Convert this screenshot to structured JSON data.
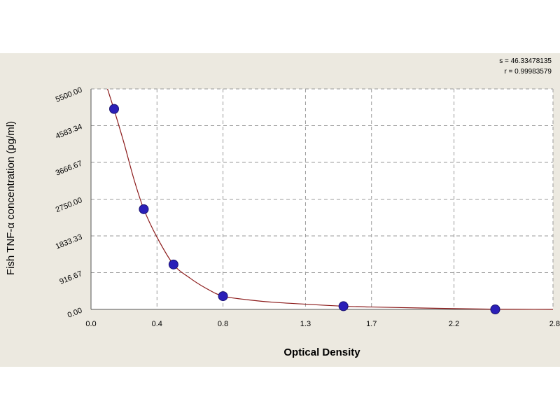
{
  "stats": {
    "s_line": "s = 46.33478135",
    "r_line": "r = 0.99983579"
  },
  "colors": {
    "background": "#ece9e0",
    "plot_area": "#ffffff",
    "curve": "#8b1a1a",
    "points": "#2b1fb8",
    "grid": "#9a9a9a"
  },
  "chart_data": {
    "type": "scatter",
    "title": "",
    "xlabel": "Optical Density",
    "ylabel": "Fish TNF-α concentration (pg/ml)",
    "xlim": [
      0.0,
      2.8
    ],
    "ylim": [
      0,
      5500
    ],
    "x_ticks": [
      0.0,
      0.4,
      0.8,
      1.3,
      1.7,
      2.2,
      2.8
    ],
    "x_tick_labels": [
      "0.0",
      "0.4",
      "0.8",
      "1.3",
      "1.7",
      "2.2",
      "2.8"
    ],
    "y_ticks": [
      0,
      916.67,
      1833.33,
      2750,
      3666.67,
      4583.34,
      5500
    ],
    "y_tick_labels": [
      "0.00",
      "916.67",
      "1833.33",
      "2750.00",
      "3666.67",
      "4583.34",
      "5500.00"
    ],
    "grid": true,
    "series": [
      {
        "type": "scatter",
        "x": [
          0.14,
          0.32,
          0.5,
          0.8,
          1.53,
          2.45
        ],
        "y": [
          5000,
          2500,
          1120,
          330,
          80,
          0
        ]
      },
      {
        "type": "line",
        "x": [
          0.1,
          0.14,
          0.2,
          0.26,
          0.32,
          0.4,
          0.5,
          0.6,
          0.7,
          0.8,
          0.95,
          1.1,
          1.3,
          1.53,
          1.7,
          2.0,
          2.2,
          2.45,
          2.8
        ],
        "y": [
          5500,
          4980,
          4150,
          3250,
          2500,
          1800,
          1120,
          780,
          520,
          330,
          240,
          180,
          130,
          80,
          60,
          35,
          20,
          5,
          0
        ]
      }
    ]
  }
}
